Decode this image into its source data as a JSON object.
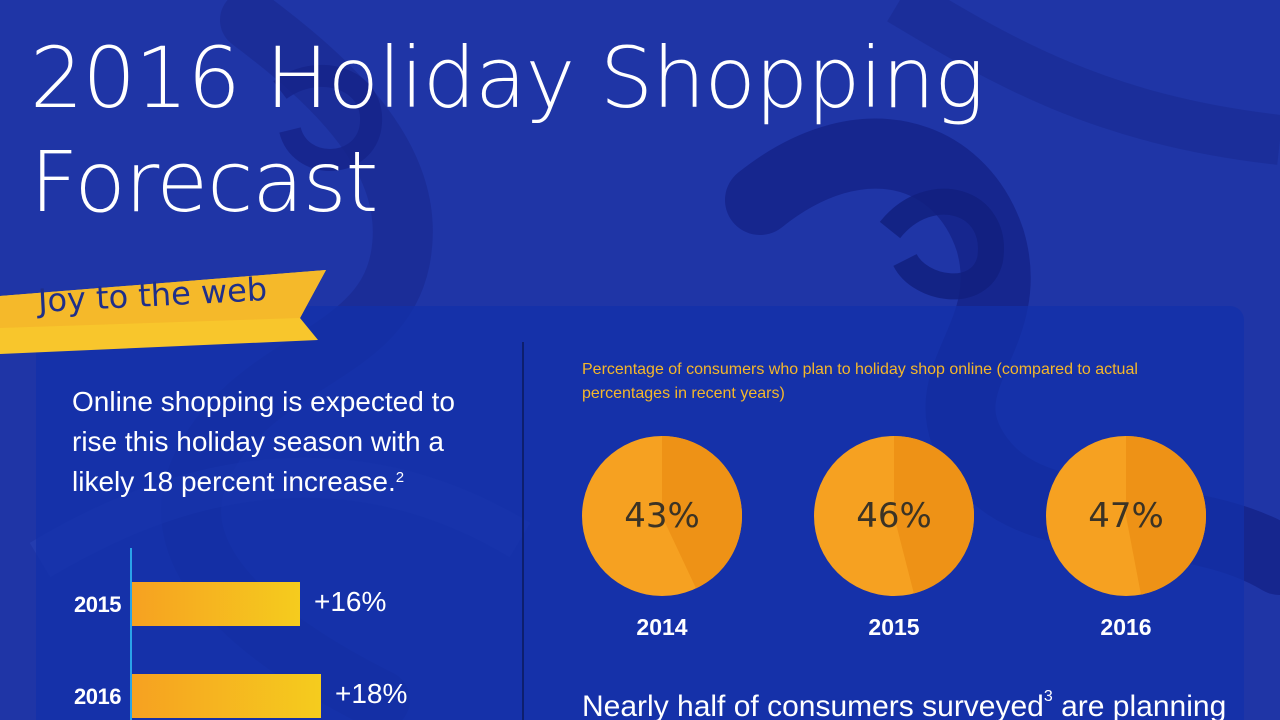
{
  "title": {
    "line1": "2016 Holiday Shopping",
    "line2": "Forecast"
  },
  "banner": {
    "text": "Joy to the web"
  },
  "intro": {
    "text": "Online shopping is expected to rise this holiday season with a likely 18 percent increase.",
    "footnote": "2"
  },
  "colors": {
    "background": "#1f35a6",
    "accent_orange": "#f6a121",
    "accent_yellow": "#f5cc1e",
    "pie_dark": "#ee9216",
    "caption": "#f5b72a"
  },
  "chart_data": [
    {
      "type": "bar",
      "orientation": "horizontal",
      "categories": [
        "2015",
        "2016"
      ],
      "values": [
        16,
        18
      ],
      "value_labels": [
        "+16%",
        "+18%"
      ],
      "title": "",
      "xlabel": "",
      "ylabel": "",
      "xlim": [
        0,
        20
      ]
    },
    {
      "type": "pie",
      "title": "Percentage of consumers who plan to holiday shop online (compared to actual percentages in recent years)",
      "charts": [
        {
          "year": "2014",
          "value": 43,
          "label": "43%"
        },
        {
          "year": "2015",
          "value": 46,
          "label": "46%"
        },
        {
          "year": "2016",
          "value": 47,
          "label": "47%"
        }
      ]
    }
  ],
  "bottom": {
    "text_before": "Nearly half of consumers surveyed",
    "footnote": "3",
    "text_after": " are planning"
  }
}
